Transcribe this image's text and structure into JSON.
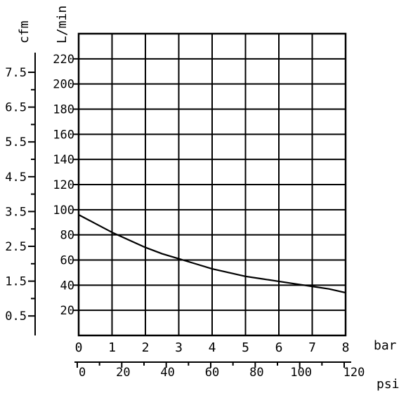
{
  "chart_data": {
    "type": "line",
    "title": "",
    "xlabel": "bar",
    "ylabel": "L/min",
    "xlim": [
      0,
      8
    ],
    "ylim": [
      0,
      240
    ],
    "x_ticks": [
      "0",
      "1",
      "2",
      "3",
      "4",
      "5",
      "6",
      "7",
      "8"
    ],
    "y_ticks": [
      "20",
      "40",
      "60",
      "80",
      "100",
      "120",
      "140",
      "160",
      "180",
      "200",
      "220"
    ],
    "grid": true,
    "secondary_x_axis": {
      "label": "psi",
      "ticks": [
        "0",
        "20",
        "40",
        "60",
        "80",
        "100",
        "120"
      ],
      "range": [
        0,
        120
      ]
    },
    "secondary_y_axis": {
      "label": "cfm",
      "ticks": [
        "0.5",
        "1.5",
        "2.5",
        "3.5",
        "4.5",
        "5.5",
        "6.5",
        "7.5"
      ]
    },
    "series": [
      {
        "x": [
          0,
          0.5,
          1,
          1.5,
          2,
          2.5,
          3,
          3.5,
          4,
          4.5,
          5,
          5.5,
          6,
          6.5,
          7,
          7.5,
          8
        ],
        "values": [
          96,
          89,
          82,
          76,
          70,
          65,
          61,
          57,
          53,
          50,
          47,
          45,
          43,
          41,
          39,
          37,
          34
        ],
        "color": "#000000"
      }
    ]
  }
}
